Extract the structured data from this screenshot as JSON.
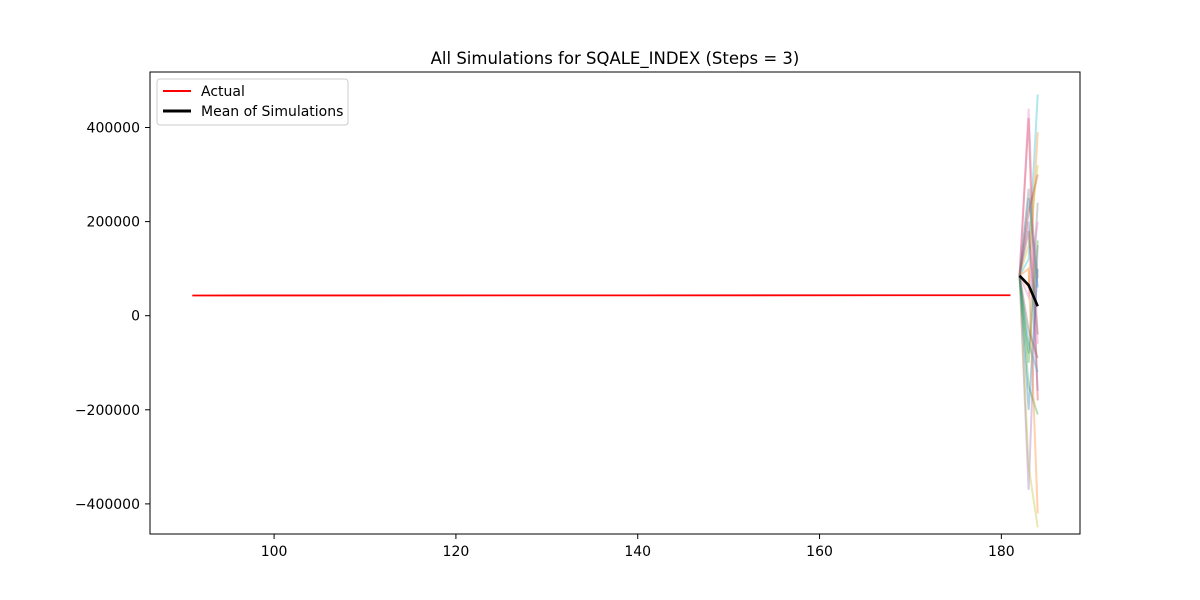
{
  "chart_data": {
    "type": "line",
    "title": "All Simulations for SQALE_INDEX (Steps = 3)",
    "xlabel": "",
    "ylabel": "",
    "xlim": [
      86.35,
      188.65
    ],
    "ylim": [
      -464000,
      518000
    ],
    "x_ticks": [
      100,
      120,
      140,
      160,
      180
    ],
    "y_ticks": [
      -400000,
      -200000,
      0,
      200000,
      400000
    ],
    "y_tick_labels": [
      "−400000",
      "−200000",
      "0",
      "200000",
      "400000"
    ],
    "grid": false,
    "legend_position": "upper-left",
    "legend": [
      "Actual",
      "Mean of Simulations"
    ],
    "series": [
      {
        "name": "Actual",
        "color": "#ff0000",
        "points": [
          [
            91,
            43000
          ],
          [
            181,
            43500
          ]
        ]
      },
      {
        "name": "Mean of Simulations",
        "color": "#000000",
        "points": [
          [
            182,
            85000
          ],
          [
            183,
            65000
          ],
          [
            184,
            20000
          ]
        ]
      }
    ],
    "simulations": {
      "x": [
        182,
        183,
        184
      ],
      "alpha": 0.35,
      "paths": [
        {
          "color": "#d62728",
          "values": [
            85000,
            420000,
            -180000
          ]
        },
        {
          "color": "#e377c2",
          "values": [
            85000,
            440000,
            -60000
          ]
        },
        {
          "color": "#1f77b4",
          "values": [
            85000,
            250000,
            60000
          ]
        },
        {
          "color": "#9467bd",
          "values": [
            85000,
            -370000,
            150000
          ]
        },
        {
          "color": "#bcbd22",
          "values": [
            85000,
            -320000,
            -450000
          ]
        },
        {
          "color": "#17becf",
          "values": [
            85000,
            120000,
            470000
          ]
        },
        {
          "color": "#ff7f0e",
          "values": [
            85000,
            60000,
            390000
          ]
        },
        {
          "color": "#2ca02c",
          "values": [
            85000,
            -150000,
            -210000
          ]
        },
        {
          "color": "#8c564b",
          "values": [
            85000,
            180000,
            -40000
          ]
        },
        {
          "color": "#7f7f7f",
          "values": [
            85000,
            -80000,
            240000
          ]
        },
        {
          "color": "#1f77b4",
          "values": [
            85000,
            -200000,
            100000
          ]
        },
        {
          "color": "#d62728",
          "values": [
            85000,
            220000,
            300000
          ]
        },
        {
          "color": "#17becf",
          "values": [
            85000,
            -60000,
            -120000
          ]
        },
        {
          "color": "#bcbd22",
          "values": [
            85000,
            150000,
            320000
          ]
        },
        {
          "color": "#9467bd",
          "values": [
            85000,
            200000,
            -160000
          ]
        },
        {
          "color": "#2ca02c",
          "values": [
            85000,
            -100000,
            160000
          ]
        },
        {
          "color": "#ff7f0e",
          "values": [
            85000,
            100000,
            -420000
          ]
        },
        {
          "color": "#e377c2",
          "values": [
            85000,
            40000,
            200000
          ]
        },
        {
          "color": "#8c564b",
          "values": [
            85000,
            -30000,
            -90000
          ]
        },
        {
          "color": "#7f7f7f",
          "values": [
            85000,
            270000,
            80000
          ]
        }
      ]
    }
  }
}
